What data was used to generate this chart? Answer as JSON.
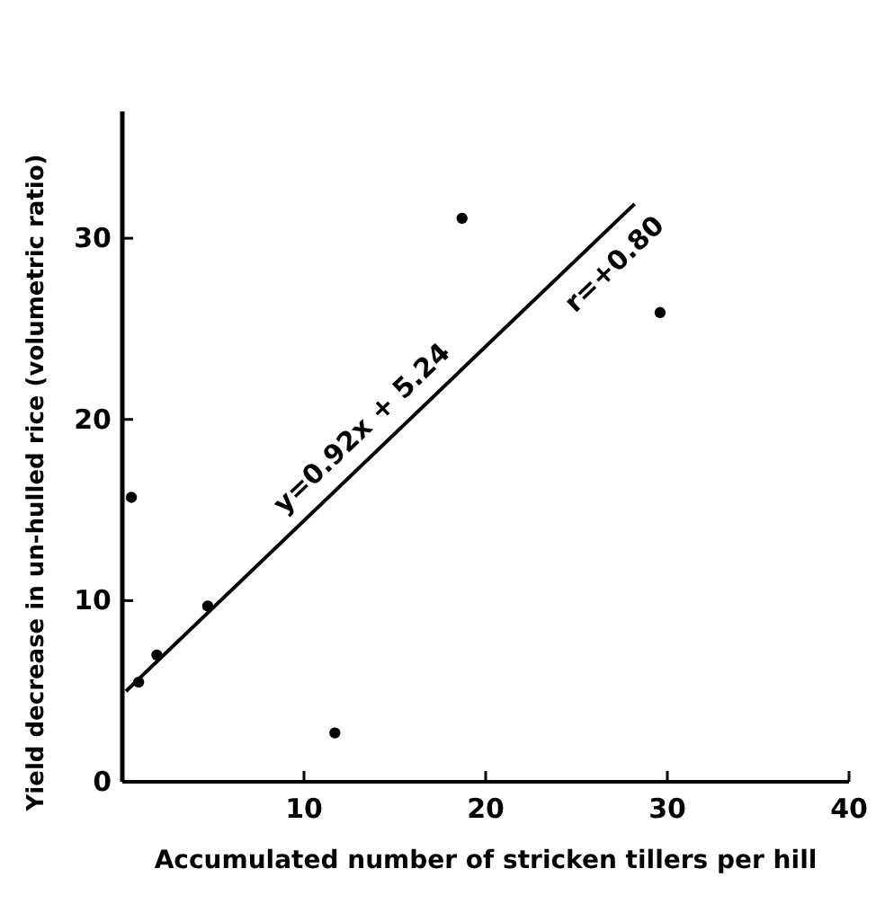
{
  "chart_data": {
    "type": "scatter",
    "xlabel": "Accumulated number of stricken tillers per hill",
    "ylabel": "Yield decrease in un-hulled rice (volumetric ratio)",
    "xlim": [
      0,
      40
    ],
    "xticks": [
      10,
      20,
      30,
      40
    ],
    "ylim": [
      0,
      37
    ],
    "yticks": [
      0,
      10,
      20,
      30
    ],
    "grid": false,
    "marker": "circle",
    "series": [
      {
        "color": "#000000",
        "x": [
          0.5,
          0.9,
          1.9,
          4.7,
          11.7,
          18.7,
          29.6
        ],
        "values": [
          15.7,
          5.5,
          7.0,
          9.7,
          2.7,
          31.1,
          25.9
        ]
      },
      {
        "type": "line",
        "color": "#000000",
        "line_style": "solid",
        "marker": "none",
        "x": [
          0.2,
          28.2
        ],
        "values": [
          5.0,
          31.9
        ]
      }
    ],
    "annotations": [
      "y=0.92x + 5.24",
      "r=+0.80"
    ]
  }
}
